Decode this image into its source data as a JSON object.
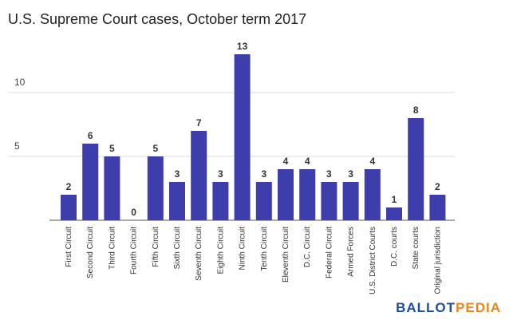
{
  "chart_data": {
    "type": "bar",
    "title": "U.S. Supreme Court cases, October term 2017",
    "categories": [
      "First Circuit",
      "Second Circuit",
      "Third Circuit",
      "Fourth Circuit",
      "Fifth Circuit",
      "Sixth Circuit",
      "Seventh Circuit",
      "Eighth Circuit",
      "Ninth Circuit",
      "Tenth Circuit",
      "Eleventh Circuit",
      "D.C. Circuit",
      "Federal Circuit",
      "Armed Forces",
      "U.S. District Courts",
      "D.C. courts",
      "State courts",
      "Original jurisdiction"
    ],
    "values": [
      2,
      6,
      5,
      0,
      5,
      3,
      7,
      3,
      13,
      3,
      4,
      4,
      3,
      3,
      4,
      1,
      8,
      2
    ],
    "color": "#3d3dab",
    "ylim": [
      0,
      13.5
    ],
    "yticks": [
      5,
      10
    ],
    "grid": true
  },
  "logo": {
    "left": "BALLOT",
    "right": "PEDIA"
  }
}
